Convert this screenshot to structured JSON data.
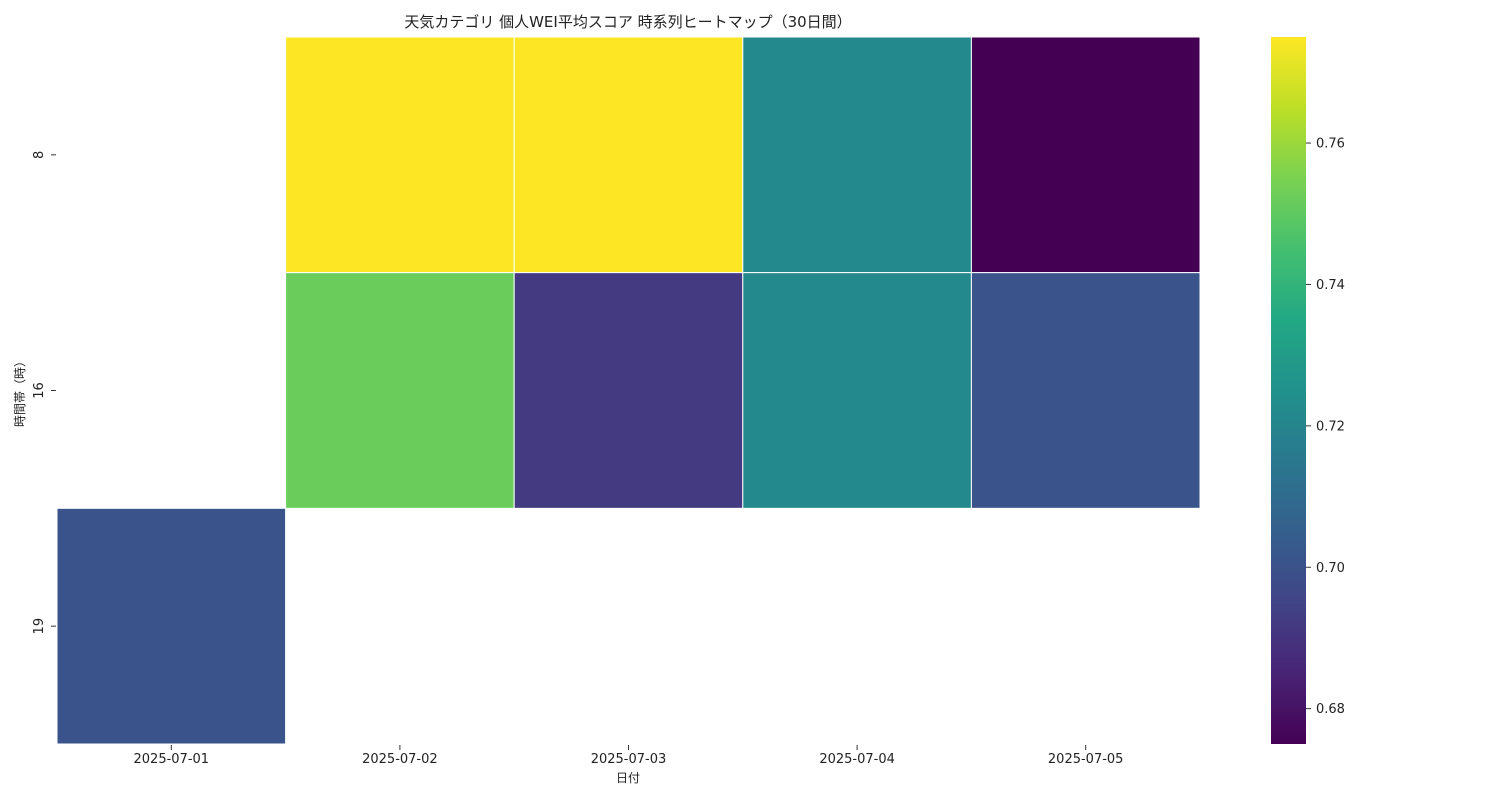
{
  "chart_data": {
    "type": "heatmap",
    "title": "天気カテゴリ 個人WEI平均スコア 時系列ヒートマップ（30日間）",
    "xlabel": "日付",
    "ylabel": "時間帯（時）",
    "x_categories": [
      "2025-07-01",
      "2025-07-02",
      "2025-07-03",
      "2025-07-04",
      "2025-07-05"
    ],
    "y_categories": [
      "8",
      "16",
      "19"
    ],
    "values": [
      [
        null,
        0.775,
        0.775,
        0.722,
        0.675
      ],
      [
        null,
        0.752,
        0.692,
        0.722,
        0.701
      ],
      [
        0.701,
        null,
        null,
        null,
        null
      ]
    ],
    "colorscale": "viridis",
    "colorbar": {
      "range": [
        0.675,
        0.775
      ],
      "ticks": [
        0.68,
        0.7,
        0.72,
        0.74,
        0.76
      ],
      "tick_labels": [
        "0.68",
        "0.70",
        "0.72",
        "0.74",
        "0.76"
      ]
    },
    "cell_border_color": "#ffffff",
    "missing_cell_color": "#ffffff"
  }
}
